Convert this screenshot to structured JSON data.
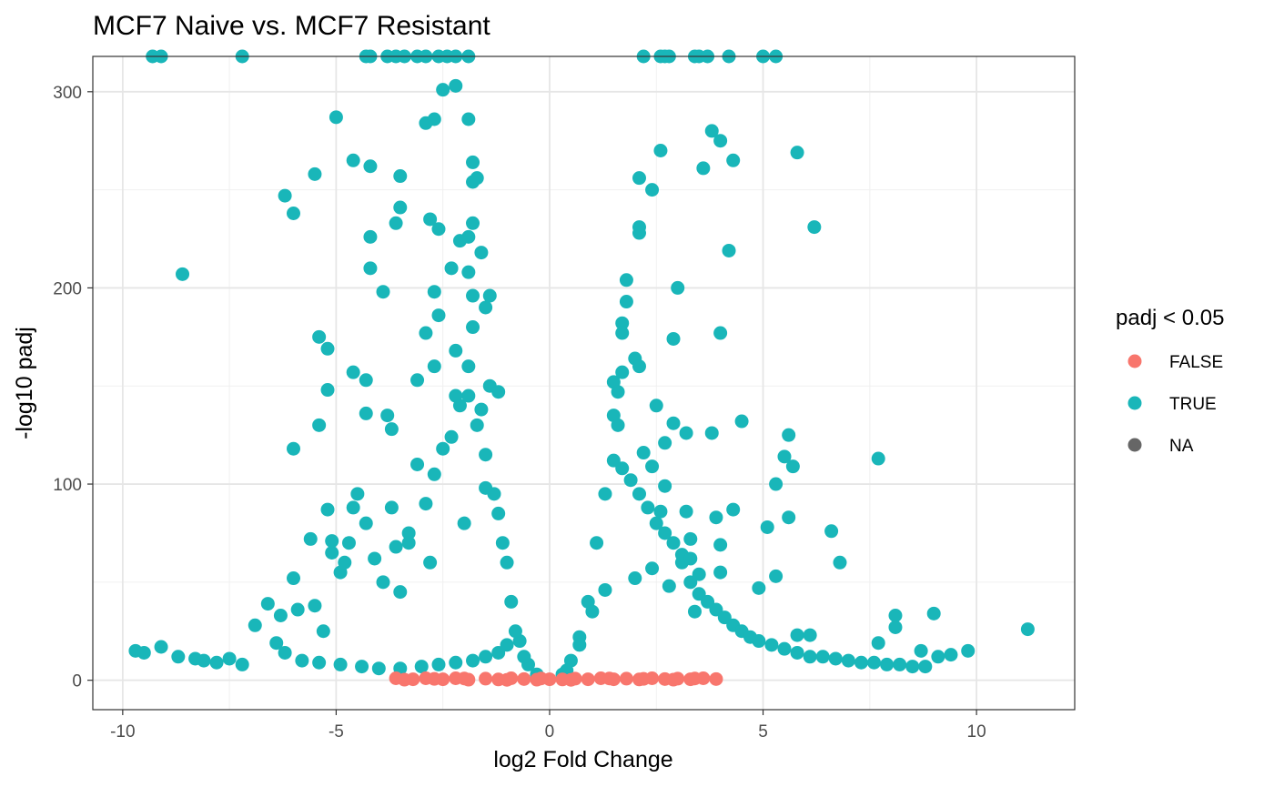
{
  "chart_data": {
    "type": "scatter",
    "title": "MCF7 Naive vs. MCF7 Resistant",
    "xlabel": "log2 Fold Change",
    "ylabel": "-log10 padj",
    "xlim": [
      -10.7,
      12.3
    ],
    "ylim": [
      -15,
      318
    ],
    "x_ticks": [
      -10,
      -5,
      0,
      5,
      10
    ],
    "x_tick_labels": [
      "-10",
      "-5",
      "0",
      "5",
      "10"
    ],
    "y_ticks": [
      0,
      100,
      200,
      300
    ],
    "y_tick_labels": [
      "0",
      "100",
      "200",
      "300"
    ],
    "grid": true,
    "legend": {
      "title": "padj < 0.05",
      "placement": "right",
      "entries": [
        {
          "label": "FALSE",
          "color": "#F8766D"
        },
        {
          "label": "TRUE",
          "color": "#19B6B9"
        },
        {
          "label": "NA",
          "color": "#666666"
        }
      ]
    },
    "series": [
      {
        "name": "TRUE",
        "color": "#19B6B9",
        "points": [
          [
            -9.7,
            15
          ],
          [
            -9.5,
            14
          ],
          [
            -9.1,
            17
          ],
          [
            -8.7,
            12
          ],
          [
            -8.3,
            11
          ],
          [
            -8.1,
            10
          ],
          [
            -7.8,
            9
          ],
          [
            -7.5,
            11
          ],
          [
            -7.2,
            8
          ],
          [
            -6.9,
            28
          ],
          [
            -6.6,
            39
          ],
          [
            -6.3,
            33
          ],
          [
            -6.0,
            52
          ],
          [
            -5.9,
            36
          ],
          [
            -5.6,
            72
          ],
          [
            -5.5,
            38
          ],
          [
            -5.3,
            25
          ],
          [
            -5.1,
            65
          ],
          [
            -4.9,
            55
          ],
          [
            -4.7,
            70
          ],
          [
            -4.5,
            95
          ],
          [
            -4.3,
            80
          ],
          [
            -4.1,
            62
          ],
          [
            -3.9,
            50
          ],
          [
            -3.7,
            88
          ],
          [
            -3.5,
            45
          ],
          [
            -3.3,
            70
          ],
          [
            -3.1,
            110
          ],
          [
            -2.9,
            90
          ],
          [
            -2.7,
            105
          ],
          [
            -2.5,
            118
          ],
          [
            -2.3,
            124
          ],
          [
            -2.1,
            140
          ],
          [
            -1.9,
            145
          ],
          [
            -1.7,
            130
          ],
          [
            -1.5,
            115
          ],
          [
            -1.3,
            95
          ],
          [
            -1.1,
            70
          ],
          [
            -0.9,
            40
          ],
          [
            -0.7,
            20
          ],
          [
            -0.5,
            8
          ],
          [
            -0.3,
            3
          ],
          [
            -9.3,
            318
          ],
          [
            -9.1,
            318
          ],
          [
            -7.2,
            318
          ],
          [
            -4.3,
            318
          ],
          [
            -4.2,
            318
          ],
          [
            -3.8,
            318
          ],
          [
            -3.6,
            318
          ],
          [
            -3.4,
            318
          ],
          [
            -3.1,
            318
          ],
          [
            -2.9,
            318
          ],
          [
            -2.6,
            318
          ],
          [
            -2.4,
            318
          ],
          [
            -2.2,
            318
          ],
          [
            -1.9,
            318
          ],
          [
            -8.6,
            207
          ],
          [
            -6.2,
            247
          ],
          [
            -6.0,
            238
          ],
          [
            -5.5,
            258
          ],
          [
            -5.0,
            287
          ],
          [
            -4.6,
            265
          ],
          [
            -4.2,
            262
          ],
          [
            -4.2,
            226
          ],
          [
            -4.2,
            210
          ],
          [
            -3.5,
            257
          ],
          [
            -3.5,
            241
          ],
          [
            -3.6,
            233
          ],
          [
            -3.9,
            198
          ],
          [
            -2.9,
            284
          ],
          [
            -2.7,
            286
          ],
          [
            -2.5,
            301
          ],
          [
            -2.2,
            303
          ],
          [
            -1.9,
            286
          ],
          [
            -1.8,
            264
          ],
          [
            -1.8,
            254
          ],
          [
            -1.7,
            256
          ],
          [
            -1.8,
            233
          ],
          [
            -2.1,
            224
          ],
          [
            -1.9,
            226
          ],
          [
            -1.6,
            218
          ],
          [
            -2.6,
            230
          ],
          [
            -2.8,
            235
          ],
          [
            -2.3,
            210
          ],
          [
            -1.9,
            208
          ],
          [
            -1.8,
            196
          ],
          [
            -1.5,
            190
          ],
          [
            -1.4,
            196
          ],
          [
            -2.7,
            198
          ],
          [
            -2.2,
            168
          ],
          [
            -1.8,
            180
          ],
          [
            -1.9,
            160
          ],
          [
            -2.9,
            177
          ],
          [
            -2.6,
            186
          ],
          [
            -5.4,
            175
          ],
          [
            -5.2,
            169
          ],
          [
            -5.4,
            130
          ],
          [
            -5.2,
            148
          ],
          [
            -4.6,
            157
          ],
          [
            -4.3,
            153
          ],
          [
            -4.3,
            136
          ],
          [
            -3.8,
            135
          ],
          [
            -3.7,
            128
          ],
          [
            -3.1,
            153
          ],
          [
            -2.7,
            160
          ],
          [
            -2.2,
            145
          ],
          [
            -1.4,
            150
          ],
          [
            -1.2,
            147
          ],
          [
            -1.6,
            138
          ],
          [
            -6.0,
            118
          ],
          [
            -5.2,
            87
          ],
          [
            -5.1,
            71
          ],
          [
            -4.8,
            60
          ],
          [
            -4.6,
            88
          ],
          [
            -3.6,
            68
          ],
          [
            -3.3,
            75
          ],
          [
            -2.8,
            60
          ],
          [
            -2.0,
            80
          ],
          [
            -1.5,
            98
          ],
          [
            -1.2,
            85
          ],
          [
            -1.0,
            60
          ],
          [
            -6.4,
            19
          ],
          [
            -6.2,
            14
          ],
          [
            -5.8,
            10
          ],
          [
            -5.4,
            9
          ],
          [
            -4.9,
            8
          ],
          [
            -4.4,
            7
          ],
          [
            -4.0,
            6
          ],
          [
            -3.5,
            6
          ],
          [
            -3.0,
            7
          ],
          [
            -2.6,
            8
          ],
          [
            -2.2,
            9
          ],
          [
            -1.8,
            10
          ],
          [
            -1.5,
            12
          ],
          [
            -1.2,
            14
          ],
          [
            -1.0,
            18
          ],
          [
            -0.8,
            25
          ],
          [
            -0.6,
            12
          ],
          [
            0.3,
            3
          ],
          [
            0.5,
            10
          ],
          [
            0.7,
            22
          ],
          [
            0.9,
            40
          ],
          [
            1.1,
            70
          ],
          [
            1.3,
            95
          ],
          [
            1.5,
            112
          ],
          [
            1.7,
            108
          ],
          [
            1.9,
            102
          ],
          [
            2.1,
            95
          ],
          [
            2.3,
            88
          ],
          [
            2.5,
            80
          ],
          [
            2.7,
            75
          ],
          [
            2.9,
            70
          ],
          [
            3.1,
            60
          ],
          [
            3.3,
            50
          ],
          [
            3.5,
            44
          ],
          [
            3.7,
            40
          ],
          [
            3.9,
            36
          ],
          [
            4.1,
            32
          ],
          [
            4.3,
            28
          ],
          [
            4.5,
            25
          ],
          [
            4.7,
            22
          ],
          [
            4.9,
            20
          ],
          [
            5.2,
            18
          ],
          [
            5.5,
            16
          ],
          [
            5.8,
            14
          ],
          [
            6.1,
            12
          ],
          [
            6.4,
            12
          ],
          [
            6.7,
            11
          ],
          [
            7.0,
            10
          ],
          [
            7.3,
            9
          ],
          [
            7.6,
            9
          ],
          [
            7.9,
            8
          ],
          [
            8.2,
            8
          ],
          [
            8.5,
            7
          ],
          [
            8.8,
            7
          ],
          [
            9.1,
            12
          ],
          [
            9.4,
            13
          ],
          [
            9.8,
            15
          ],
          [
            11.2,
            26
          ],
          [
            9.0,
            34
          ],
          [
            8.1,
            33
          ],
          [
            8.1,
            27
          ],
          [
            7.7,
            19
          ],
          [
            8.7,
            15
          ],
          [
            6.8,
            60
          ],
          [
            6.6,
            76
          ],
          [
            7.7,
            113
          ],
          [
            6.1,
            23
          ],
          [
            5.8,
            23
          ],
          [
            5.6,
            125
          ],
          [
            5.5,
            114
          ],
          [
            5.7,
            109
          ],
          [
            5.3,
            100
          ],
          [
            5.6,
            83
          ],
          [
            5.1,
            78
          ],
          [
            5.3,
            53
          ],
          [
            4.9,
            47
          ],
          [
            4.5,
            132
          ],
          [
            4.3,
            87
          ],
          [
            3.9,
            83
          ],
          [
            4.0,
            69
          ],
          [
            4.0,
            55
          ],
          [
            3.4,
            35
          ],
          [
            2.2,
            318
          ],
          [
            2.6,
            318
          ],
          [
            2.7,
            318
          ],
          [
            2.8,
            318
          ],
          [
            3.4,
            318
          ],
          [
            3.5,
            318
          ],
          [
            3.7,
            318
          ],
          [
            4.2,
            318
          ],
          [
            5.0,
            318
          ],
          [
            5.3,
            318
          ],
          [
            2.1,
            256
          ],
          [
            2.4,
            250
          ],
          [
            2.1,
            231
          ],
          [
            2.1,
            228
          ],
          [
            2.6,
            270
          ],
          [
            3.6,
            261
          ],
          [
            3.8,
            280
          ],
          [
            4.0,
            275
          ],
          [
            4.3,
            265
          ],
          [
            4.2,
            219
          ],
          [
            5.8,
            269
          ],
          [
            6.2,
            231
          ],
          [
            3.0,
            200
          ],
          [
            4.0,
            177
          ],
          [
            2.9,
            174
          ],
          [
            1.8,
            204
          ],
          [
            1.8,
            193
          ],
          [
            1.7,
            182
          ],
          [
            1.7,
            177
          ],
          [
            2.0,
            164
          ],
          [
            2.1,
            160
          ],
          [
            1.7,
            157
          ],
          [
            1.5,
            152
          ],
          [
            1.6,
            147
          ],
          [
            2.5,
            140
          ],
          [
            1.5,
            135
          ],
          [
            1.6,
            130
          ],
          [
            2.9,
            131
          ],
          [
            3.2,
            126
          ],
          [
            3.8,
            126
          ],
          [
            2.7,
            121
          ],
          [
            2.2,
            116
          ],
          [
            2.4,
            109
          ],
          [
            2.7,
            99
          ],
          [
            2.6,
            86
          ],
          [
            3.2,
            86
          ],
          [
            3.3,
            72
          ],
          [
            3.1,
            64
          ],
          [
            3.3,
            62
          ],
          [
            3.5,
            54
          ],
          [
            2.8,
            48
          ],
          [
            2.4,
            57
          ],
          [
            2.0,
            52
          ],
          [
            1.3,
            46
          ],
          [
            1.0,
            35
          ],
          [
            0.7,
            18
          ],
          [
            0.4,
            5
          ]
        ]
      },
      {
        "name": "FALSE",
        "color": "#F8766D",
        "points": [
          [
            -3.6,
            1
          ],
          [
            -3.2,
            0.5
          ],
          [
            -2.9,
            1
          ],
          [
            -2.5,
            0.5
          ],
          [
            -2.2,
            1
          ],
          [
            -1.9,
            0.3
          ],
          [
            -1.5,
            0.8
          ],
          [
            -1.2,
            0.4
          ],
          [
            -0.9,
            1
          ],
          [
            -0.6,
            0.6
          ],
          [
            -0.3,
            0.3
          ],
          [
            0,
            0.5
          ],
          [
            0.3,
            0.4
          ],
          [
            0.6,
            0.8
          ],
          [
            0.9,
            0.5
          ],
          [
            1.2,
            1
          ],
          [
            1.5,
            0.5
          ],
          [
            1.8,
            0.8
          ],
          [
            2.1,
            0.4
          ],
          [
            2.4,
            1
          ],
          [
            2.7,
            0.6
          ],
          [
            3.0,
            0.8
          ],
          [
            3.3,
            0.5
          ],
          [
            3.6,
            1
          ],
          [
            3.9,
            0.6
          ],
          [
            -3.4,
            0.3
          ],
          [
            -2.7,
            0.7
          ],
          [
            -2.0,
            0.9
          ],
          [
            -1.0,
            0.2
          ],
          [
            -0.2,
            0.9
          ],
          [
            0.5,
            0.2
          ],
          [
            1.4,
            0.9
          ],
          [
            2.2,
            0.7
          ],
          [
            2.9,
            0.3
          ],
          [
            3.4,
            0.9
          ]
        ]
      }
    ]
  }
}
